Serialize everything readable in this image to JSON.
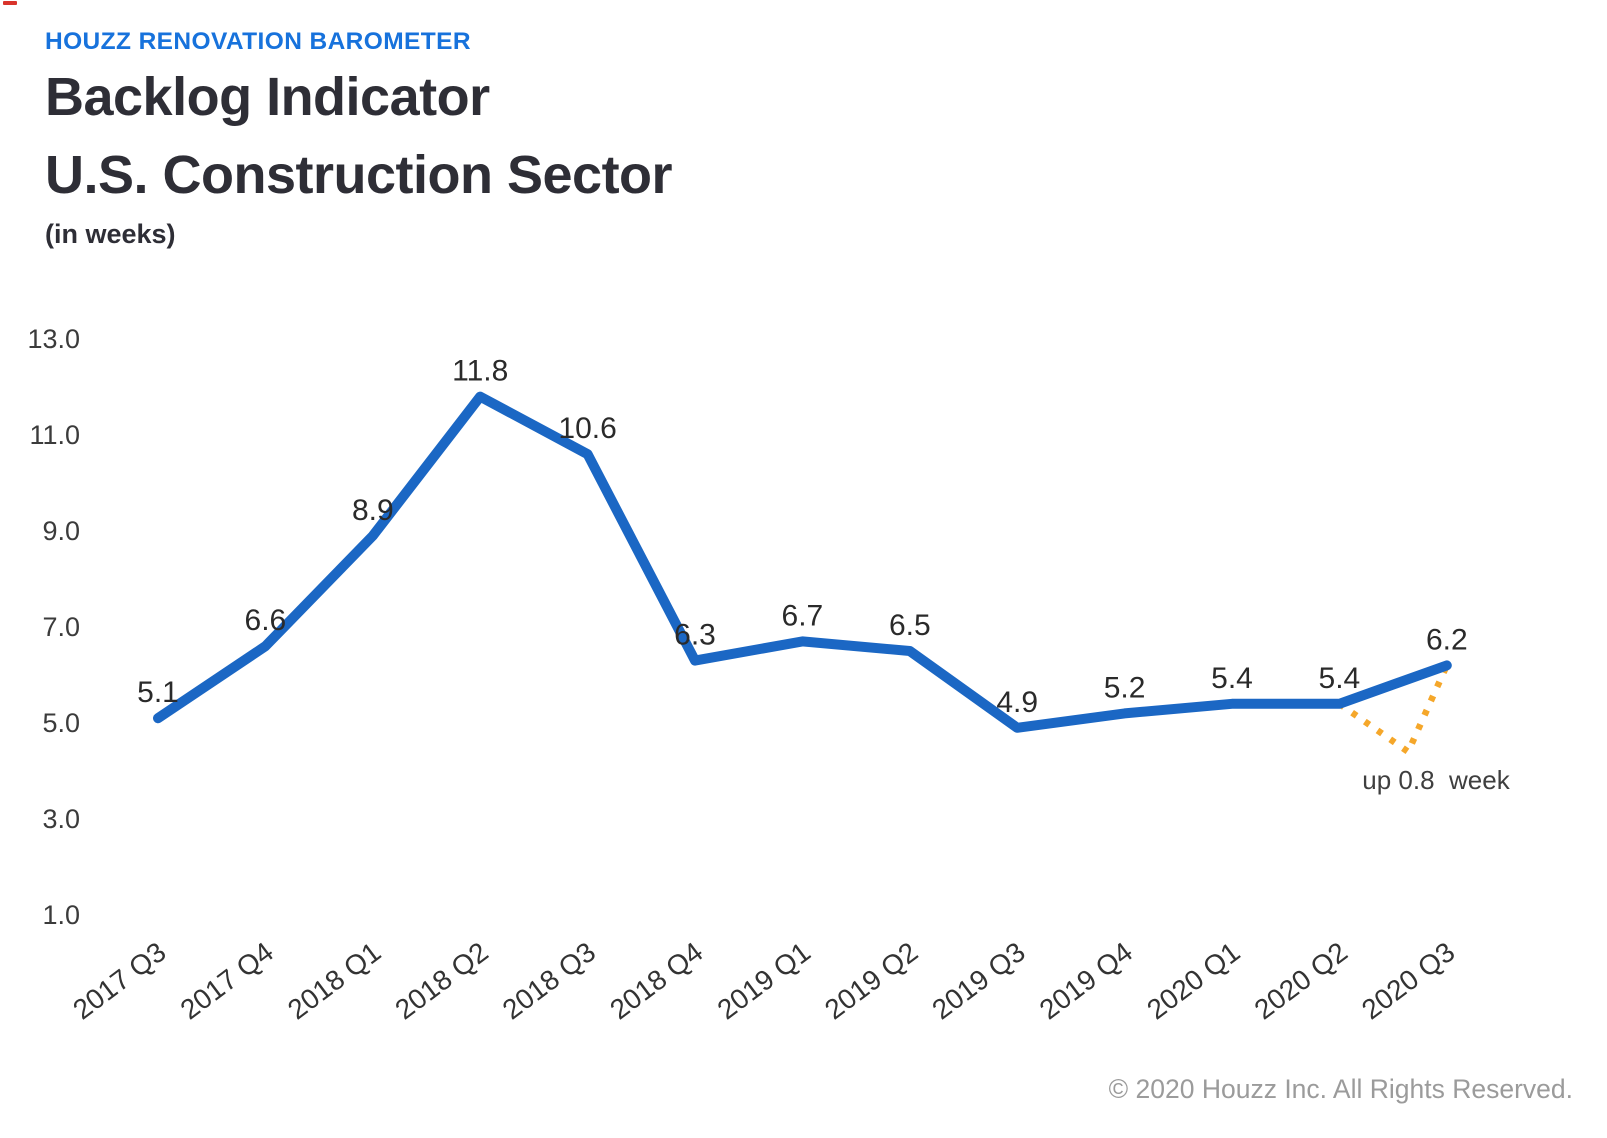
{
  "header": {
    "eyebrow": "HOUZZ RENOVATION BAROMETER",
    "title_line1": "Backlog Indicator",
    "title_line2": "U.S. Construction Sector",
    "subtitle": "(in weeks)"
  },
  "footer": {
    "copyright": "© 2020 Houzz Inc. All Rights Reserved."
  },
  "colors": {
    "eyebrow_blue": "#1772DC",
    "title_dark": "#2E2E36",
    "line_blue": "#1B67C4",
    "annotation_orange": "#F5A72A",
    "tick_text": "#3B3B3B",
    "data_label_text": "#2A2A2A",
    "copyright_gray": "#9B9B9B"
  },
  "chart_data": {
    "type": "line",
    "title": "Backlog Indicator U.S. Construction Sector",
    "ylabel": "weeks",
    "categories": [
      "2017 Q3",
      "2017 Q4",
      "2018 Q1",
      "2018 Q2",
      "2018 Q3",
      "2018 Q4",
      "2019 Q1",
      "2019 Q2",
      "2019 Q3",
      "2019 Q4",
      "2020 Q1",
      "2020 Q2",
      "2020 Q3"
    ],
    "values": [
      5.1,
      6.6,
      8.9,
      11.8,
      10.6,
      6.3,
      6.7,
      6.5,
      4.9,
      5.2,
      5.4,
      5.4,
      6.2
    ],
    "point_labels": [
      "5.1",
      "6.6",
      "8.9",
      "11.8",
      "10.6",
      "6.3",
      "6.7",
      "6.5",
      "4.9",
      "5.2",
      "5.4",
      "5.4",
      "6.2"
    ],
    "ylim": [
      1.0,
      13.0
    ],
    "yticks": [
      13.0,
      11.0,
      9.0,
      7.0,
      5.0,
      3.0,
      1.0
    ],
    "ytick_labels": [
      "13.0",
      "11.0",
      "9.0",
      "7.0",
      "5.0",
      "3.0",
      "1.0"
    ],
    "grid": false,
    "legend": "none",
    "annotation": {
      "text": "up 0.8  week",
      "from_category": "2020 Q2",
      "to_category": "2020 Q3",
      "dip_value": 4.4,
      "dip_x_fraction": 0.64,
      "change": "+0.8"
    }
  }
}
